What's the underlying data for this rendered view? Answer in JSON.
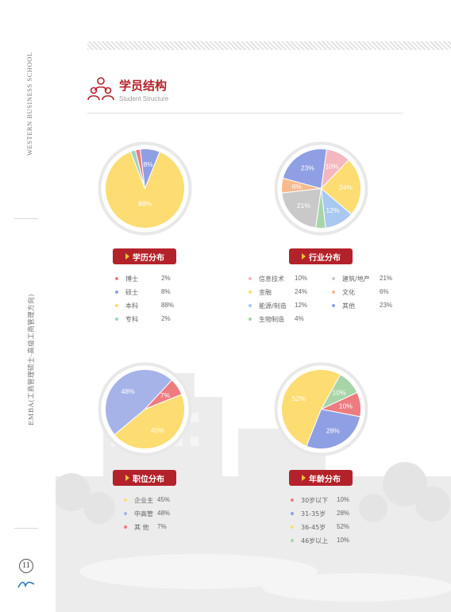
{
  "margin": {
    "school_en": "WESTERN BUSINESS SCHOOL",
    "program": "EMBA(工商管理硕士-高级工商管理方向)",
    "page_number": "11"
  },
  "header": {
    "title_cn": "学员结构",
    "title_en": "Student Structure"
  },
  "colors": {
    "accent": "#b3222a",
    "chevron": "#f0c230",
    "pink": "#f4b7c0",
    "yellow": "#fddc72",
    "blue": "#a6b3e9",
    "green": "#a8d5a8",
    "orange": "#f6ba8e",
    "gray": "#c9c9c9",
    "cornflower": "#8f9fe3",
    "red": "#ed7b80",
    "teal": "#9cd4c2",
    "lightblue": "#a9c8f2"
  },
  "chart_data": [
    {
      "type": "pie",
      "title": "学历分布",
      "categories": [
        "博士",
        "硕士",
        "本科",
        "专科"
      ],
      "values": [
        2,
        8,
        88,
        2
      ],
      "value_labels": [
        "2%",
        "8%",
        "88%",
        "2%"
      ],
      "slice_labels": [
        "",
        "8%",
        "88%",
        ""
      ],
      "colors": [
        "#ed7b80",
        "#8f9fe3",
        "#fddc72",
        "#9cd4c2"
      ]
    },
    {
      "type": "pie",
      "title": "行业分布",
      "categories": [
        "信息技术",
        "金融",
        "能源/制造",
        "生物制造",
        "建筑/地产",
        "文化",
        "其他"
      ],
      "values": [
        10,
        24,
        12,
        4,
        21,
        6,
        23
      ],
      "value_labels": [
        "10%",
        "24%",
        "12%",
        "4%",
        "21%",
        "6%",
        "23%"
      ],
      "pie_order": [
        0,
        1,
        2,
        3,
        4,
        5,
        6
      ],
      "slice_labels": [
        "10%",
        "24%",
        "12%",
        "",
        "21%",
        "6%",
        "23%"
      ],
      "colors": [
        "#f4b7c0",
        "#fddc72",
        "#a9c8f2",
        "#a8d5a8",
        "#c9c9c9",
        "#f6ba8e",
        "#8f9fe3"
      ]
    },
    {
      "type": "pie",
      "title": "职位分布",
      "categories": [
        "企业主",
        "中高管",
        "其  他"
      ],
      "values": [
        45,
        48,
        7
      ],
      "value_labels": [
        "45%",
        "48%",
        "7%"
      ],
      "slice_labels": [
        "45%",
        "48%",
        "7%"
      ],
      "colors": [
        "#fddc72",
        "#a6b3e9",
        "#ed7b80"
      ]
    },
    {
      "type": "pie",
      "title": "年龄分布",
      "categories": [
        "30岁以下",
        "31-35岁",
        "36-45岁",
        "46岁以上"
      ],
      "values": [
        10,
        28,
        52,
        10
      ],
      "value_labels": [
        "10%",
        "28%",
        "52%",
        "10%"
      ],
      "slice_labels": [
        "10%",
        "28%",
        "52%",
        "10%"
      ],
      "colors": [
        "#ed7b80",
        "#8f9fe3",
        "#fddc72",
        "#a8d5a8"
      ]
    }
  ]
}
